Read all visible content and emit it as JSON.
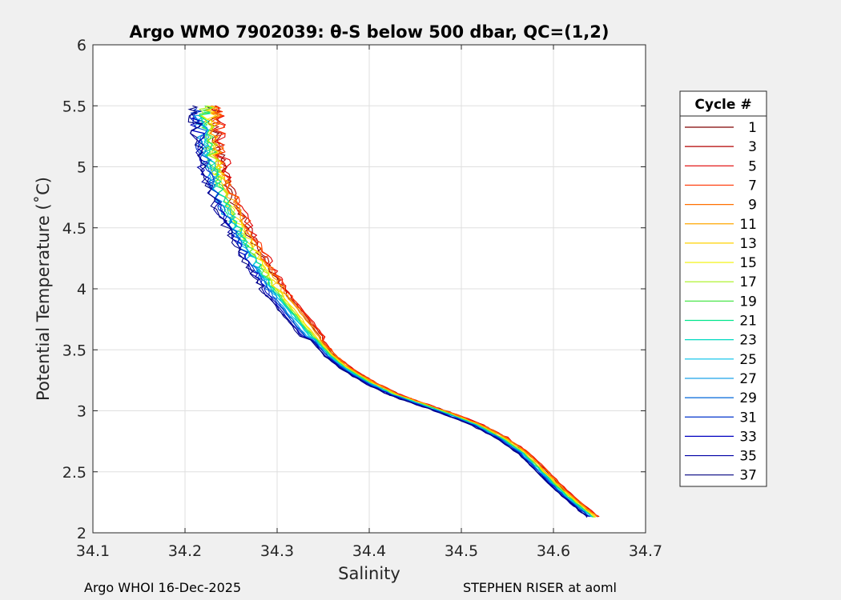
{
  "chart_data": {
    "type": "line",
    "title": "Argo WMO 7902039: θ-S below 500 dbar,  QC=(1,2)",
    "xlabel": "Salinity",
    "ylabel": "Potential Temperature (˚C)",
    "xlim": [
      34.1,
      34.7
    ],
    "ylim": [
      2,
      6
    ],
    "xticks": [
      "34.1",
      "34.2",
      "34.3",
      "34.4",
      "34.5",
      "34.6",
      "34.7"
    ],
    "yticks": [
      "2",
      "2.5",
      "3",
      "3.5",
      "4",
      "4.5",
      "5",
      "5.5",
      "6"
    ],
    "grid": true,
    "legend": {
      "title": "Cycle #",
      "position": "right",
      "entries": [
        {
          "label": "1",
          "color": "#800000"
        },
        {
          "label": "3",
          "color": "#b30000"
        },
        {
          "label": "5",
          "color": "#e00000"
        },
        {
          "label": "7",
          "color": "#ff3300"
        },
        {
          "label": "9",
          "color": "#ff7000"
        },
        {
          "label": "11",
          "color": "#ffa600"
        },
        {
          "label": "13",
          "color": "#ffd200"
        },
        {
          "label": "15",
          "color": "#f2f200"
        },
        {
          "label": "17",
          "color": "#a6f21a"
        },
        {
          "label": "19",
          "color": "#4ce64c"
        },
        {
          "label": "21",
          "color": "#00e68c"
        },
        {
          "label": "23",
          "color": "#00d9c0"
        },
        {
          "label": "25",
          "color": "#00c0ea"
        },
        {
          "label": "27",
          "color": "#0099e6"
        },
        {
          "label": "29",
          "color": "#0066d9"
        },
        {
          "label": "31",
          "color": "#0033cc"
        },
        {
          "label": "33",
          "color": "#0000c0"
        },
        {
          "label": "35",
          "color": "#0000a6"
        },
        {
          "label": "37",
          "color": "#000080"
        }
      ]
    },
    "base_profile": {
      "salinity": [
        34.645,
        34.63,
        34.61,
        34.59,
        34.57,
        34.545,
        34.52,
        34.49,
        34.46,
        34.43,
        34.405,
        34.38,
        34.36,
        34.345,
        34.33,
        34.315,
        34.3,
        34.29,
        34.28,
        34.27,
        34.26,
        34.25,
        34.24,
        34.235,
        34.23,
        34.228,
        34.226,
        34.225
      ],
      "theta": [
        2.13,
        2.22,
        2.35,
        2.5,
        2.65,
        2.78,
        2.88,
        2.97,
        3.05,
        3.13,
        3.22,
        3.33,
        3.45,
        3.58,
        3.72,
        3.86,
        4.0,
        4.12,
        4.25,
        4.38,
        4.52,
        4.68,
        4.85,
        5.0,
        5.15,
        5.3,
        5.42,
        5.5
      ]
    },
    "series": [
      {
        "name": "1",
        "color": "#800000",
        "salinity_offset": 0.004,
        "top_theta": 5.55
      },
      {
        "name": "3",
        "color": "#b30000",
        "salinity_offset": 0.006,
        "top_theta": 5.57
      },
      {
        "name": "5",
        "color": "#e00000",
        "salinity_offset": 0.008,
        "top_theta": 5.5
      },
      {
        "name": "7",
        "color": "#ff3300",
        "salinity_offset": 0.007,
        "top_theta": 5.58
      },
      {
        "name": "9",
        "color": "#ff7000",
        "salinity_offset": 0.005,
        "top_theta": 5.6
      },
      {
        "name": "11",
        "color": "#ffa600",
        "salinity_offset": 0.003,
        "top_theta": 5.6
      },
      {
        "name": "13",
        "color": "#ffd200",
        "salinity_offset": 0.0,
        "top_theta": 5.58
      },
      {
        "name": "15",
        "color": "#f2f200",
        "salinity_offset": -0.001,
        "top_theta": 5.55
      },
      {
        "name": "17",
        "color": "#a6f21a",
        "salinity_offset": -0.002,
        "top_theta": 5.55
      },
      {
        "name": "19",
        "color": "#4ce64c",
        "salinity_offset": -0.003,
        "top_theta": 5.5
      },
      {
        "name": "21",
        "color": "#00e68c",
        "salinity_offset": -0.004,
        "top_theta": 5.45
      },
      {
        "name": "23",
        "color": "#00d9c0",
        "salinity_offset": -0.005,
        "top_theta": 5.4
      },
      {
        "name": "25",
        "color": "#00c0ea",
        "salinity_offset": -0.006,
        "top_theta": 5.4
      },
      {
        "name": "27",
        "color": "#0099e6",
        "salinity_offset": -0.008,
        "top_theta": 5.42
      },
      {
        "name": "29",
        "color": "#0066d9",
        "salinity_offset": -0.009,
        "top_theta": 5.45
      },
      {
        "name": "31",
        "color": "#0033cc",
        "salinity_offset": -0.01,
        "top_theta": 5.48
      },
      {
        "name": "33",
        "color": "#0000c0",
        "salinity_offset": -0.012,
        "top_theta": 5.4
      },
      {
        "name": "35",
        "color": "#0000a6",
        "salinity_offset": -0.013,
        "top_theta": 5.45
      },
      {
        "name": "37",
        "color": "#000080",
        "salinity_offset": -0.014,
        "top_theta": 5.5
      }
    ]
  },
  "footer": {
    "left": "Argo WHOI 16-Dec-2025",
    "right": "STEPHEN RISER at aoml"
  }
}
